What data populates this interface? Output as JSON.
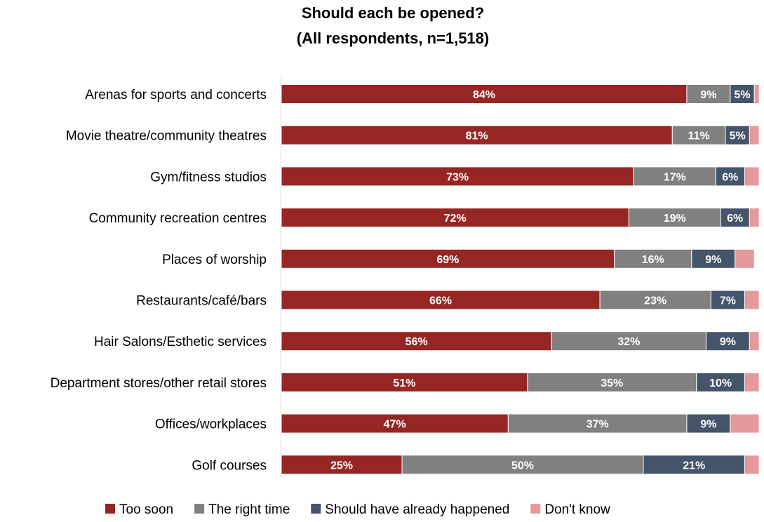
{
  "chart_data": {
    "type": "bar",
    "orientation": "horizontal",
    "stacked": true,
    "title": [
      "Should each be opened?",
      "(All respondents, n=1,518)"
    ],
    "categories": [
      "Arenas for sports and concerts",
      "Movie theatre/community theatres",
      "Gym/fitness studios",
      "Community recreation centres",
      "Places of worship",
      "Restaurants/café/bars",
      "Hair Salons/Esthetic services",
      "Department stores/other retail stores",
      "Offices/workplaces",
      "Golf courses"
    ],
    "series": [
      {
        "name": "Too soon",
        "color": "#962623",
        "values": [
          84,
          81,
          73,
          72,
          69,
          66,
          56,
          51,
          47,
          25
        ],
        "labels": [
          "84%",
          "81%",
          "73%",
          "72%",
          "69%",
          "66%",
          "56%",
          "51%",
          "47%",
          "25%"
        ]
      },
      {
        "name": "The right time",
        "color": "#808080",
        "values": [
          9,
          11,
          17,
          19,
          16,
          23,
          32,
          35,
          37,
          50
        ],
        "labels": [
          "9%",
          "11%",
          "17%",
          "19%",
          "16%",
          "23%",
          "32%",
          "35%",
          "37%",
          "50%"
        ]
      },
      {
        "name": "Should have already happened",
        "color": "#44546A",
        "values": [
          5,
          5,
          6,
          6,
          9,
          7,
          9,
          10,
          9,
          21
        ],
        "labels": [
          "5%",
          "5%",
          "6%",
          "6%",
          "9%",
          "7%",
          "9%",
          "10%",
          "9%",
          "21%"
        ]
      },
      {
        "name": "Don't know",
        "color": "#E6999B",
        "values": [
          1,
          2,
          3,
          2,
          4,
          3,
          2,
          3,
          6,
          3
        ],
        "labels": [
          "",
          "",
          "",
          "",
          "",
          "",
          "",
          "",
          "",
          ""
        ]
      }
    ],
    "xlim": [
      0,
      100
    ],
    "grid": false,
    "legend_position": "bottom"
  }
}
